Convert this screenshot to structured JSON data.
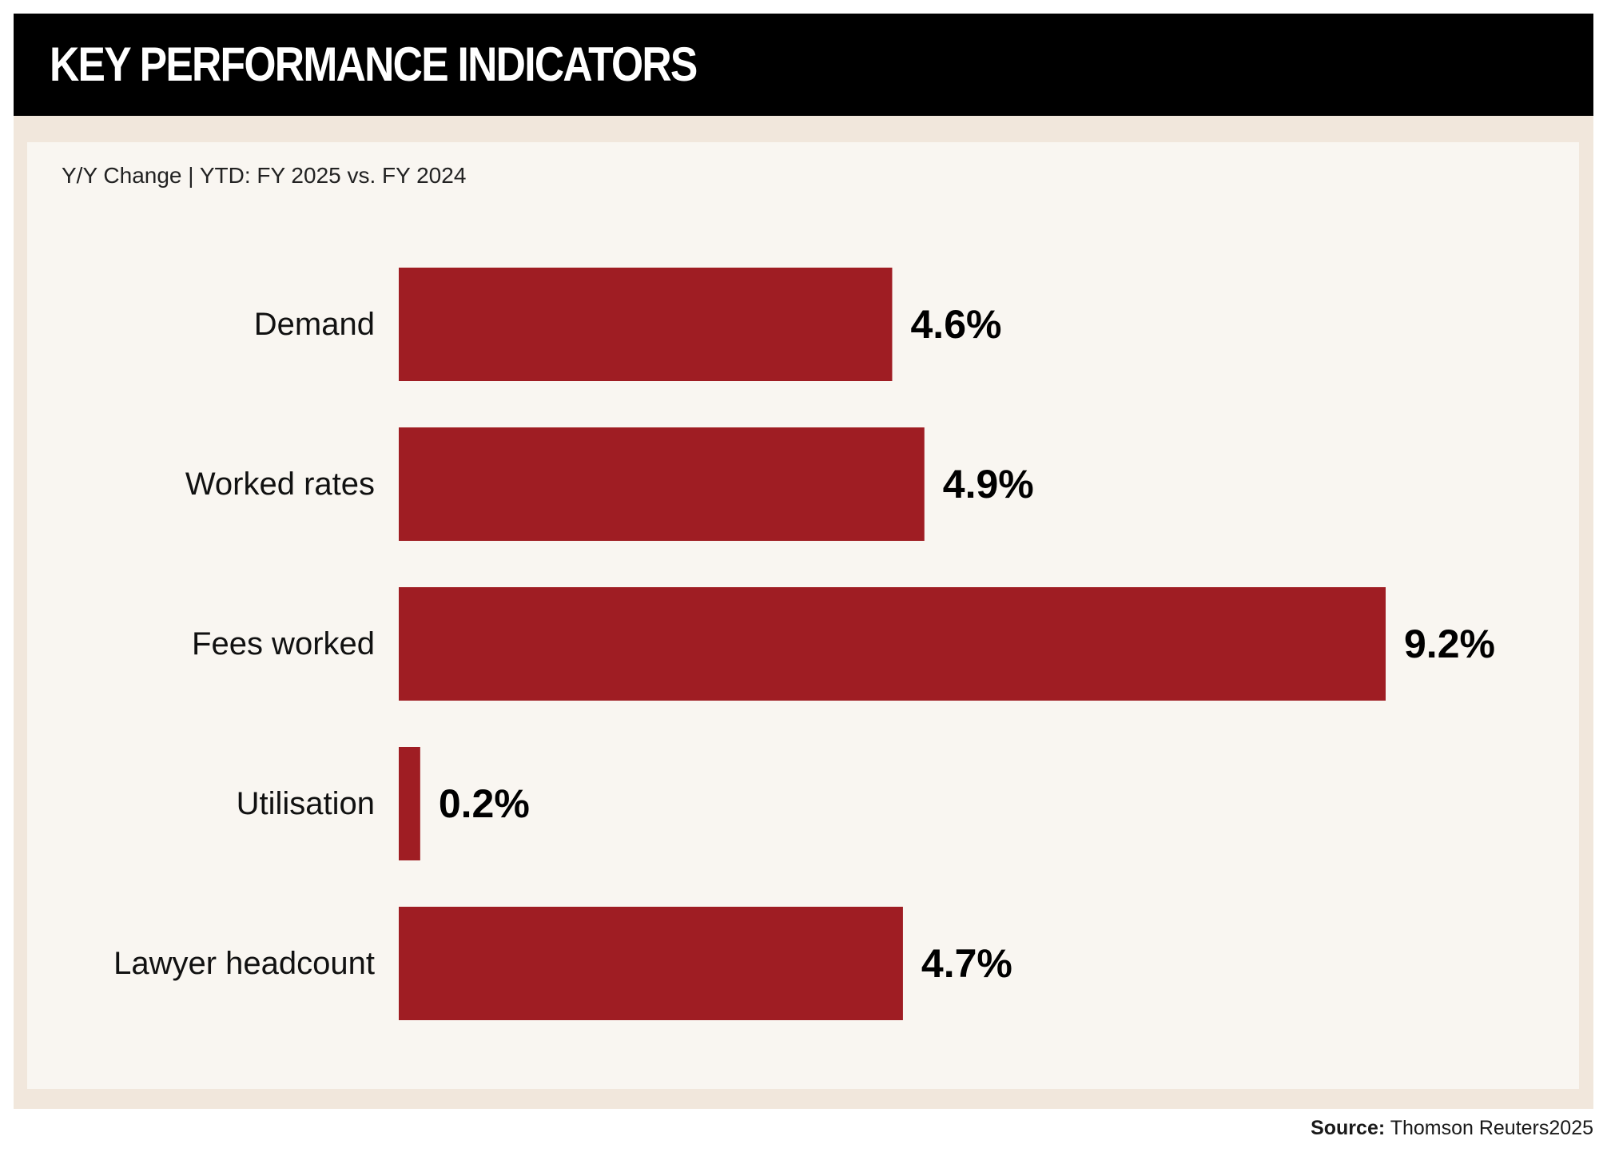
{
  "header": {
    "title": "KEY PERFORMANCE INDICATORS"
  },
  "colors": {
    "header_background": "#000000",
    "frame_background": "#f1e7dc",
    "panel_background": "#f9f6f1",
    "bar": "#9f1d23",
    "text": "#111111"
  },
  "chart_data": {
    "type": "bar",
    "orientation": "horizontal",
    "subtitle": "Y/Y Change | YTD: FY 2025 vs. FY 2024",
    "categories": [
      "Demand",
      "Worked rates",
      "Fees worked",
      "Utilisation",
      "Lawyer headcount"
    ],
    "values": [
      4.6,
      4.9,
      9.2,
      0.2,
      4.7
    ],
    "value_labels": [
      "4.6%",
      "4.9%",
      "9.2%",
      "0.2%",
      "4.7%"
    ],
    "unit": "%",
    "xlim": [
      0,
      9.2
    ],
    "grid": false,
    "legend": "none"
  },
  "footer": {
    "source_label": "Source:",
    "source_text": "Thomson Reuters2025"
  }
}
